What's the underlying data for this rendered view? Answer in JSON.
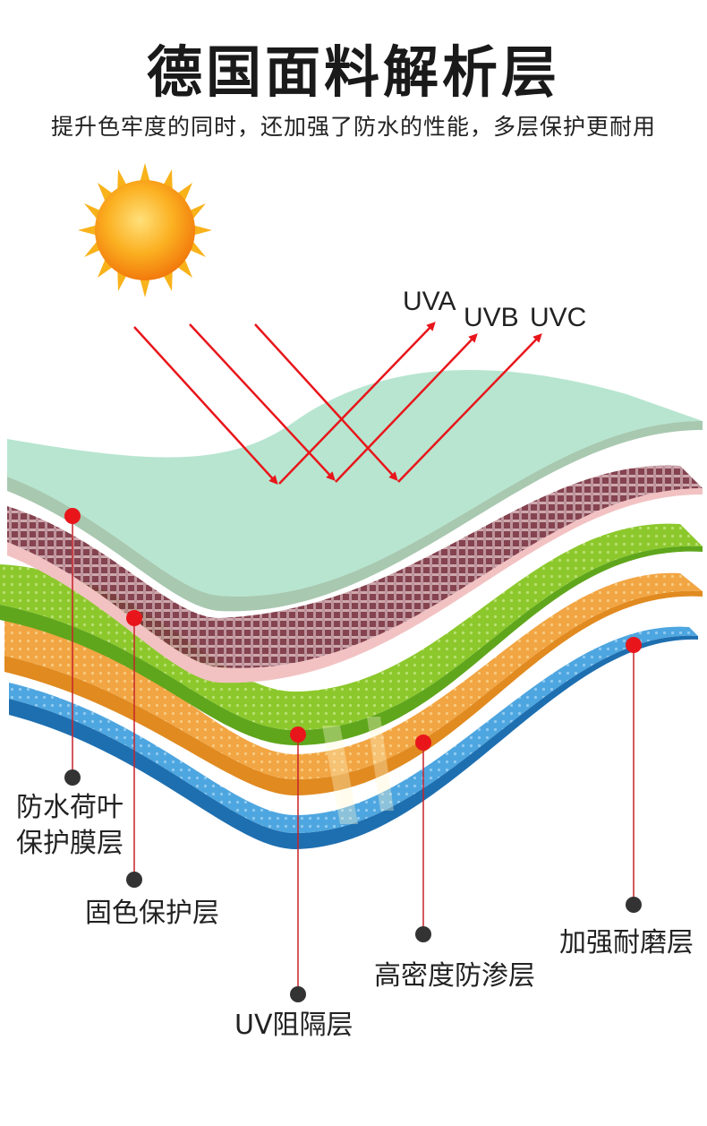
{
  "title": "德国面料解析层",
  "subtitle": "提升色牢度的同时，还加强了防水的性能，多层保护更耐用",
  "uv_rays": [
    "UVA",
    "UVB",
    "UVC"
  ],
  "layers": [
    {
      "id": "waterproof",
      "line1": "防水荷叶",
      "line2": "保护膜层",
      "color": "#9fdcc0"
    },
    {
      "id": "colorfast",
      "label": "固色保护层",
      "color": "#8b3f4c"
    },
    {
      "id": "uv-barrier",
      "label": "UV阻隔层",
      "color": "#86c528"
    },
    {
      "id": "anti-seepage",
      "label": "高密度防渗层",
      "color": "#f0a040"
    },
    {
      "id": "wear-resistant",
      "label": "加强耐磨层",
      "color": "#3d9ad8"
    }
  ],
  "colors": {
    "ray": "#e8161b",
    "dot_red": "#e8161b",
    "dot_dark": "#333333",
    "sun": "#f79a12"
  }
}
